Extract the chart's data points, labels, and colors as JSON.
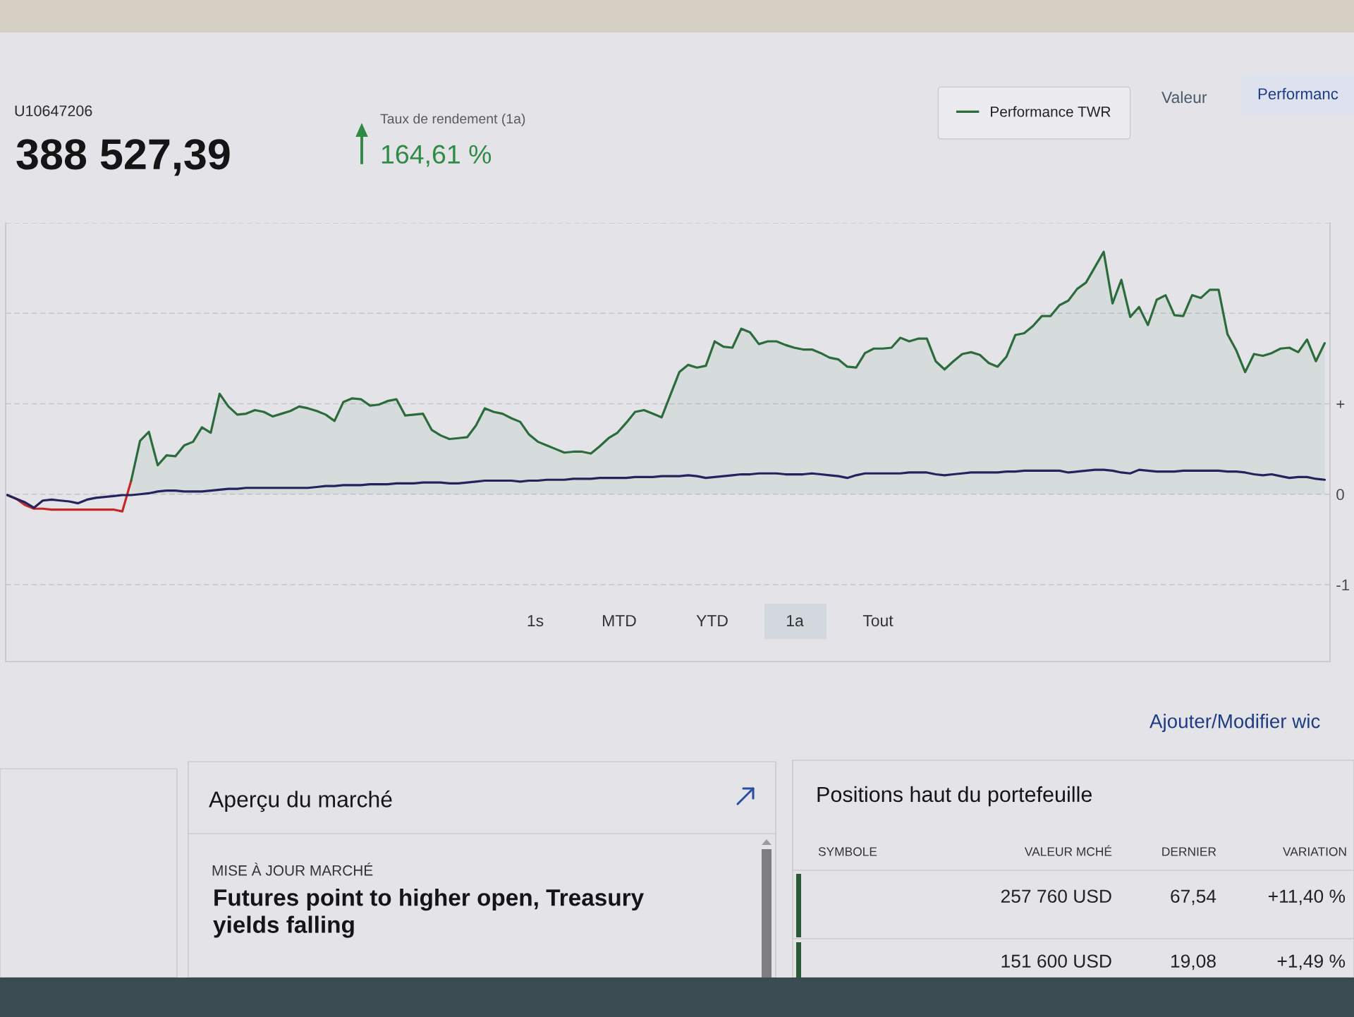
{
  "chart_data": {
    "type": "line",
    "categories": [
      null,
      null,
      null,
      null,
      null,
      null,
      null,
      null,
      null,
      null,
      null,
      null,
      null,
      null,
      null,
      null,
      null,
      null,
      null,
      null,
      null,
      null,
      null,
      null,
      null,
      null,
      null,
      null,
      null,
      null,
      null,
      null,
      null,
      null,
      null,
      null,
      null,
      null,
      null,
      null,
      null,
      null,
      null,
      null,
      null,
      null,
      null,
      null,
      null,
      null,
      null,
      null,
      null,
      null,
      null,
      null,
      null,
      null,
      null,
      null,
      null,
      null,
      null,
      null,
      null,
      null,
      null,
      null,
      null,
      null,
      null,
      null,
      null,
      null,
      null,
      null,
      null,
      null,
      null,
      null,
      null,
      null,
      null,
      null,
      null,
      null,
      null,
      null,
      null,
      null,
      null,
      null,
      null,
      null,
      null,
      null,
      null,
      null,
      null,
      null,
      null,
      null,
      null,
      null,
      null,
      null,
      null,
      null,
      null,
      null,
      null,
      null,
      null,
      null,
      null,
      null,
      null,
      null,
      null,
      null,
      null,
      null,
      null,
      null,
      null,
      null,
      null,
      null,
      null,
      null,
      null,
      null,
      null,
      null,
      null,
      null,
      null,
      null,
      null,
      null,
      null,
      null,
      null,
      null,
      null,
      null,
      null,
      null,
      null,
      null
    ],
    "series": [
      {
        "color": "#c62828",
        "values": [
          -0.01,
          -0.05,
          -0.12,
          -0.16,
          -0.16,
          -0.17,
          -0.17,
          -0.17,
          -0.17,
          -0.17,
          -0.17,
          -0.17,
          -0.17,
          -0.19,
          0.15,
          null,
          null,
          null,
          null,
          null,
          null,
          null,
          null,
          null,
          null,
          null,
          null,
          null,
          null,
          null,
          null,
          null,
          null,
          null,
          null,
          null,
          null,
          null,
          null,
          null,
          null,
          null,
          null,
          null,
          null,
          null,
          null,
          null,
          null,
          null,
          null,
          null,
          null,
          null,
          null,
          null,
          null,
          null,
          null,
          null,
          null,
          null,
          null,
          null,
          null,
          null,
          null,
          null,
          null,
          null,
          null,
          null,
          null,
          null,
          null,
          null,
          null,
          null,
          null,
          null,
          null,
          null,
          null,
          null,
          null,
          null,
          null,
          null,
          null,
          null,
          null,
          null,
          null,
          null,
          null,
          null,
          null,
          null,
          null,
          null,
          null,
          null,
          null,
          null,
          null,
          null,
          null,
          null,
          null,
          null,
          null,
          null,
          null,
          null,
          null,
          null,
          null,
          null,
          null,
          null,
          null,
          null,
          null,
          null,
          null,
          null,
          null,
          null,
          null,
          null,
          null,
          null,
          null,
          null,
          null,
          null,
          null,
          null,
          null,
          null,
          null,
          null,
          null,
          null,
          null,
          null,
          null,
          null,
          null,
          null
        ]
      },
      {
        "name": "Performance TWR",
        "type": "area",
        "color": "#2c6b3c",
        "values": [
          null,
          null,
          null,
          null,
          null,
          null,
          null,
          null,
          null,
          null,
          null,
          null,
          null,
          null,
          0.15,
          0.59,
          0.69,
          0.32,
          0.43,
          0.42,
          0.54,
          0.58,
          0.74,
          0.68,
          1.11,
          0.97,
          0.88,
          0.89,
          0.93,
          0.91,
          0.86,
          0.89,
          0.92,
          0.97,
          0.95,
          0.92,
          0.88,
          0.81,
          1.02,
          1.06,
          1.05,
          0.98,
          0.99,
          1.03,
          1.05,
          0.87,
          0.88,
          0.89,
          0.71,
          0.65,
          0.61,
          0.62,
          0.63,
          0.76,
          0.95,
          0.91,
          0.89,
          0.84,
          0.8,
          0.66,
          0.58,
          0.54,
          0.5,
          0.46,
          0.47,
          0.47,
          0.45,
          0.53,
          0.62,
          0.68,
          0.79,
          0.91,
          0.93,
          0.89,
          0.85,
          1.1,
          1.35,
          1.43,
          1.4,
          1.42,
          1.69,
          1.63,
          1.62,
          1.83,
          1.79,
          1.66,
          1.69,
          1.69,
          1.65,
          1.62,
          1.6,
          1.6,
          1.56,
          1.51,
          1.49,
          1.41,
          1.4,
          1.56,
          1.61,
          1.61,
          1.62,
          1.73,
          1.69,
          1.72,
          1.72,
          1.47,
          1.38,
          1.47,
          1.55,
          1.57,
          1.54,
          1.45,
          1.41,
          1.52,
          1.76,
          1.78,
          1.86,
          1.97,
          1.97,
          2.09,
          2.14,
          2.27,
          2.34,
          2.51,
          2.68,
          2.11,
          2.37,
          1.96,
          2.07,
          1.87,
          2.15,
          2.2,
          1.98,
          1.97,
          2.2,
          2.17,
          2.26,
          2.26,
          1.77,
          1.59,
          1.35,
          1.55,
          1.53,
          1.56,
          1.61,
          1.62,
          1.57,
          1.71,
          1.47,
          1.67
        ]
      },
      {
        "color": "#25235e",
        "values": [
          -0.01,
          -0.05,
          -0.09,
          -0.15,
          -0.07,
          -0.06,
          -0.07,
          -0.08,
          -0.1,
          -0.06,
          -0.04,
          -0.03,
          -0.02,
          -0.01,
          -0.01,
          0,
          0.01,
          0.03,
          0.04,
          0.04,
          0.03,
          0.03,
          0.03,
          0.04,
          0.05,
          0.06,
          0.06,
          0.07,
          0.07,
          0.07,
          0.07,
          0.07,
          0.07,
          0.07,
          0.07,
          0.08,
          0.09,
          0.09,
          0.1,
          0.1,
          0.1,
          0.11,
          0.11,
          0.11,
          0.12,
          0.12,
          0.12,
          0.13,
          0.13,
          0.13,
          0.12,
          0.12,
          0.13,
          0.14,
          0.15,
          0.15,
          0.15,
          0.15,
          0.14,
          0.15,
          0.15,
          0.16,
          0.16,
          0.16,
          0.17,
          0.17,
          0.17,
          0.18,
          0.18,
          0.18,
          0.18,
          0.19,
          0.19,
          0.19,
          0.2,
          0.2,
          0.2,
          0.21,
          0.2,
          0.18,
          0.19,
          0.2,
          0.21,
          0.22,
          0.22,
          0.23,
          0.23,
          0.23,
          0.22,
          0.22,
          0.22,
          0.23,
          0.22,
          0.21,
          0.2,
          0.18,
          0.21,
          0.23,
          0.23,
          0.23,
          0.23,
          0.23,
          0.24,
          0.24,
          0.24,
          0.22,
          0.21,
          0.22,
          0.23,
          0.24,
          0.24,
          0.24,
          0.24,
          0.25,
          0.25,
          0.26,
          0.26,
          0.26,
          0.26,
          0.26,
          0.24,
          0.25,
          0.26,
          0.27,
          0.27,
          0.26,
          0.24,
          0.23,
          0.27,
          0.26,
          0.25,
          0.25,
          0.25,
          0.26,
          0.26,
          0.26,
          0.26,
          0.26,
          0.25,
          0.25,
          0.24,
          0.22,
          0.21,
          0.22,
          0.2,
          0.18,
          0.19,
          0.19,
          0.17,
          0.16
        ]
      }
    ],
    "ylim": [
      -1.85,
      3
    ],
    "yticks": [
      -1,
      0,
      {
        "value": 1,
        "label": "+"
      },
      {
        "value": 2,
        "label": null
      },
      {
        "value": 3,
        "label": null
      }
    ],
    "tick_labels": "y",
    "grid": "y",
    "legend": "top right",
    "annotations": [
      "U10647206",
      "388 527,39",
      "Taux de rendement (1a)",
      "164,61 %",
      "Valeur",
      "Performanc",
      "1s",
      "MTD",
      "YTD",
      "1a",
      "Tout",
      "Ajouter/Modifier wic",
      "Aperçu du marché",
      "MISE À JOUR MARCHÉ",
      "Futures point to higher open, Treasury\nyields falling",
      "Positions haut du portefeuille",
      "SYMBOLE",
      "VALEUR MCHÉ",
      "DERNIER",
      "VARIATION",
      "257 760 USD",
      "67,54",
      "+11,40 %",
      "151 600 USD",
      "19,08",
      "+1,49 %"
    ]
  }
}
